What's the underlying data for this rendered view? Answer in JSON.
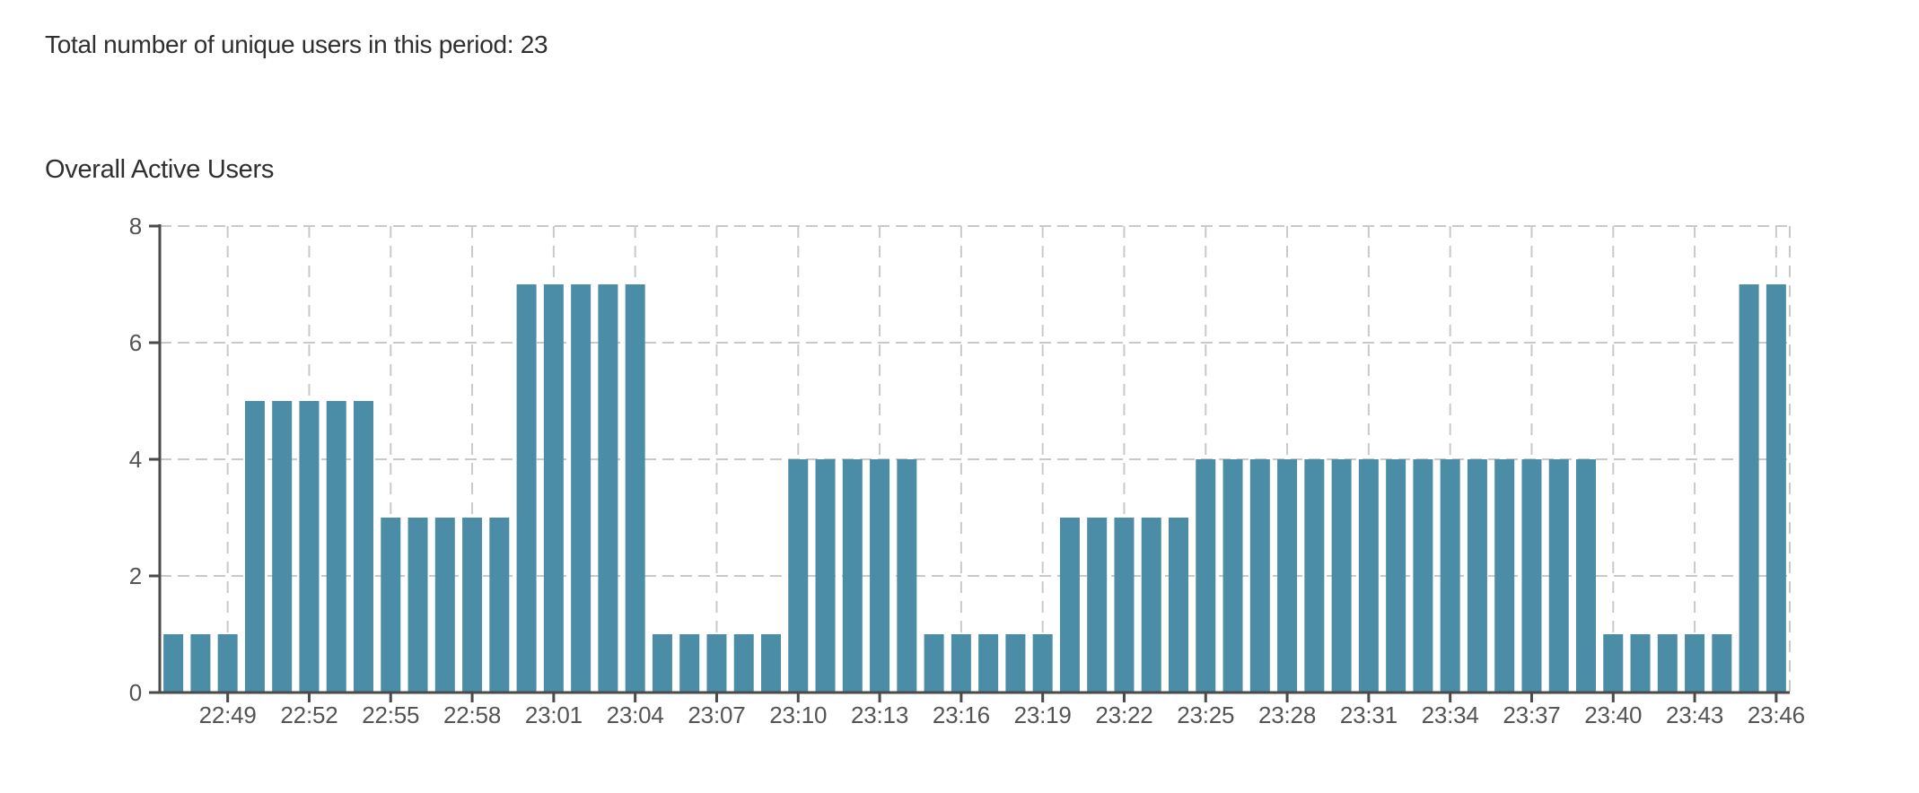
{
  "header": {
    "summary_text": "Total number of unique users in this period: 23"
  },
  "chart": {
    "title": "Overall Active Users"
  },
  "chart_data": {
    "type": "bar",
    "title": "Overall Active Users",
    "x": [
      "22:47",
      "22:48",
      "22:49",
      "22:50",
      "22:51",
      "22:52",
      "22:53",
      "22:54",
      "22:55",
      "22:56",
      "22:57",
      "22:58",
      "22:59",
      "23:00",
      "23:01",
      "23:02",
      "23:03",
      "23:04",
      "23:05",
      "23:06",
      "23:07",
      "23:08",
      "23:09",
      "23:10",
      "23:11",
      "23:12",
      "23:13",
      "23:14",
      "23:15",
      "23:16",
      "23:17",
      "23:18",
      "23:19",
      "23:20",
      "23:21",
      "23:22",
      "23:23",
      "23:24",
      "23:25",
      "23:26",
      "23:27",
      "23:28",
      "23:29",
      "23:30",
      "23:31",
      "23:32",
      "23:33",
      "23:34",
      "23:35",
      "23:36",
      "23:37",
      "23:38",
      "23:39",
      "23:40",
      "23:41",
      "23:42",
      "23:43",
      "23:44",
      "23:45",
      "23:46"
    ],
    "values": [
      1,
      1,
      1,
      5,
      5,
      5,
      5,
      5,
      3,
      3,
      3,
      3,
      3,
      7,
      7,
      7,
      7,
      7,
      1,
      1,
      1,
      1,
      1,
      4,
      4,
      4,
      4,
      4,
      1,
      1,
      1,
      1,
      1,
      3,
      3,
      3,
      3,
      3,
      4,
      4,
      4,
      4,
      4,
      4,
      4,
      4,
      4,
      4,
      4,
      4,
      4,
      4,
      4,
      1,
      1,
      1,
      1,
      1,
      7,
      7
    ],
    "xtick_labels": [
      "22:49",
      "22:52",
      "22:55",
      "22:58",
      "23:01",
      "23:04",
      "23:07",
      "23:10",
      "23:13",
      "23:16",
      "23:19",
      "23:22",
      "23:25",
      "23:28",
      "23:31",
      "23:34",
      "23:37",
      "23:40",
      "23:43",
      "23:46"
    ],
    "yticks": [
      0,
      2,
      4,
      6,
      8
    ],
    "ylim": [
      0,
      8
    ],
    "xlabel": "",
    "ylabel": "",
    "grid": true,
    "legend": "none",
    "bar_color": "#4b8da7",
    "grid_color": "#c9c9c9",
    "axis_color": "#4a4a4a",
    "tick_label_color": "#545454",
    "text_color": "#2f2f2f",
    "background": "#ffffff"
  }
}
